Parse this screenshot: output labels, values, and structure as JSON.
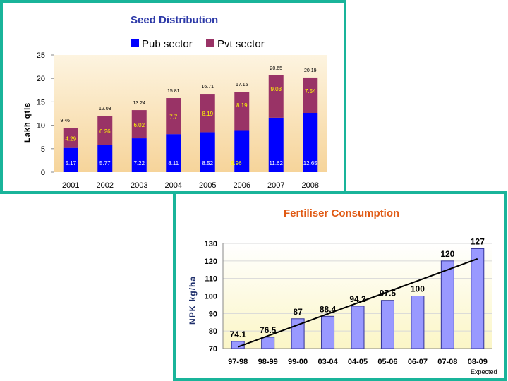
{
  "chart_data": [
    {
      "type": "bar",
      "stacked": true,
      "title": "Seed Distribution",
      "ylabel": "Lakh qtls",
      "xlabel": "",
      "ylim": [
        0,
        25
      ],
      "yticks": [
        "0",
        "5",
        "10",
        "15",
        "20",
        "25"
      ],
      "categories": [
        "2001",
        "2002",
        "2003",
        "2004",
        "2005",
        "2006",
        "2007",
        "2008"
      ],
      "series": [
        {
          "name": "Pub sector",
          "color": "#0000ff",
          "values": [
            5.17,
            5.77,
            7.22,
            8.11,
            8.52,
            8.96,
            11.62,
            12.65
          ],
          "labels": [
            "5.17",
            "5.77",
            "7.22",
            "8.11",
            "8.52",
            "8.96",
            "11.62",
            "12.65"
          ]
        },
        {
          "name": "Pvt sector",
          "color": "#993366",
          "values": [
            4.29,
            6.26,
            6.02,
            7.7,
            8.19,
            8.19,
            9.03,
            7.54
          ],
          "labels": [
            "4.29",
            "6.26",
            "6.02",
            "7.7",
            "8.19",
            "8.19",
            "9.03",
            "7.54"
          ]
        }
      ],
      "totals": [
        "9.46",
        "12.03",
        "13.24",
        "15.81",
        "16.71",
        "17.15",
        "20.65",
        "20.19"
      ],
      "legend": "top"
    },
    {
      "type": "bar",
      "title": "Fertiliser Consumption",
      "ylabel": "NPK kg/ha",
      "xlabel": "",
      "ylim": [
        70,
        130
      ],
      "yticks": [
        "70",
        "80",
        "90",
        "100",
        "110",
        "120",
        "130"
      ],
      "categories": [
        "97-98",
        "98-99",
        "99-00",
        "03-04",
        "04-05",
        "05-06",
        "06-07",
        "07-08",
        "08-09"
      ],
      "values": [
        74.1,
        76.5,
        87,
        88.4,
        94.2,
        97.5,
        100,
        120,
        127
      ],
      "labels": [
        "74.1",
        "76.5",
        "87",
        "88.4",
        "94.2",
        "97.5",
        "100",
        "120",
        "127"
      ],
      "trendline": true,
      "annotation": "Expected",
      "bar_color": "#9999ff"
    }
  ]
}
